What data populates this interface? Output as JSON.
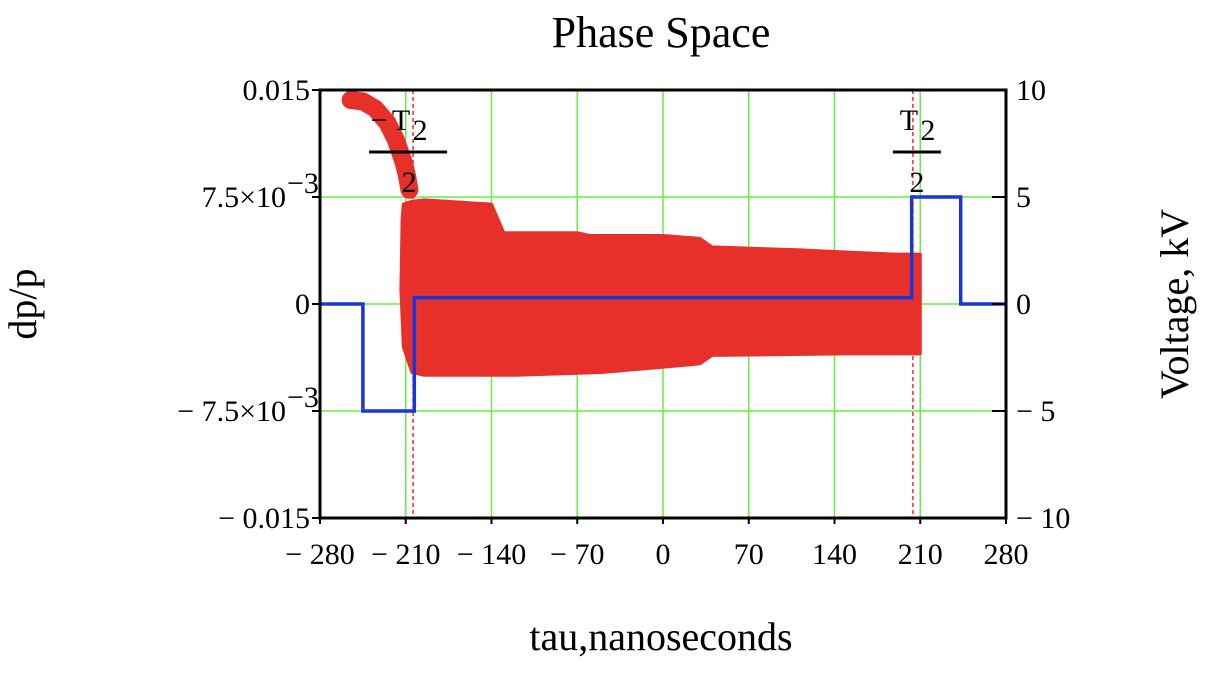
{
  "chart_data": {
    "type": "scatter",
    "title": "Phase Space",
    "xlabel": "tau,nanoseconds",
    "ylabel": "dp/p",
    "y2label": "Voltage, kV",
    "xlim": [
      -280,
      280
    ],
    "ylim": [
      -0.015,
      0.015
    ],
    "y2lim": [
      -10,
      10
    ],
    "grid": true,
    "grid_color": "#66ee44",
    "x_ticks": [
      {
        "value": -280,
        "label": "− 280"
      },
      {
        "value": -210,
        "label": "− 210"
      },
      {
        "value": -140,
        "label": "− 140"
      },
      {
        "value": -70,
        "label": "− 70"
      },
      {
        "value": 0,
        "label": "0"
      },
      {
        "value": 70,
        "label": "70"
      },
      {
        "value": 140,
        "label": "140"
      },
      {
        "value": 210,
        "label": "210"
      },
      {
        "value": 280,
        "label": "280"
      }
    ],
    "y_ticks": [
      {
        "value": 0.015,
        "label": "0.015",
        "exp": ""
      },
      {
        "value": 0.0075,
        "label": "7.5×10",
        "exp": "−3"
      },
      {
        "value": 0,
        "label": "0",
        "exp": ""
      },
      {
        "value": -0.0075,
        "label": "− 7.5×10",
        "exp": "−3"
      },
      {
        "value": -0.015,
        "label": "− 0.015",
        "exp": ""
      }
    ],
    "y2_ticks": [
      {
        "value": 10,
        "label": "10"
      },
      {
        "value": 5,
        "label": "5"
      },
      {
        "value": 0,
        "label": "0"
      },
      {
        "value": -5,
        "label": "− 5"
      },
      {
        "value": -10,
        "label": "− 10"
      }
    ],
    "markers": [
      {
        "x": -204,
        "label": "T",
        "sub": "2",
        "denominator": "2",
        "prefix": "−"
      },
      {
        "x": 204,
        "label": "T",
        "sub": "2",
        "denominator": "2",
        "prefix": ""
      }
    ],
    "marker_color": "#e8302a",
    "series": [
      {
        "kind": "voltage",
        "color": "#1a35d8",
        "axis": "y2",
        "points": [
          [
            -280,
            0
          ],
          [
            -245,
            0
          ],
          [
            -245,
            -5
          ],
          [
            -203,
            -5
          ],
          [
            -203,
            0.3
          ],
          [
            203,
            0.3
          ],
          [
            203,
            5
          ],
          [
            243,
            5
          ],
          [
            243,
            0
          ],
          [
            280,
            0
          ]
        ]
      },
      {
        "kind": "particles",
        "color": "#e8302a",
        "axis": "y",
        "tail": [
          [
            -255,
            0.0143
          ],
          [
            -245,
            0.0142
          ],
          [
            -235,
            0.0137
          ],
          [
            -225,
            0.0127
          ],
          [
            -218,
            0.0115
          ],
          [
            -212,
            0.01
          ],
          [
            -209,
            0.009
          ],
          [
            -207,
            0.008
          ]
        ],
        "envelope_upper": [
          [
            -212,
            0.007
          ],
          [
            -205,
            0.0072
          ],
          [
            -195,
            0.0073
          ],
          [
            -140,
            0.007
          ],
          [
            -130,
            0.005
          ],
          [
            -70,
            0.005
          ],
          [
            -60,
            0.0048
          ],
          [
            0,
            0.0048
          ],
          [
            30,
            0.0046
          ],
          [
            40,
            0.004
          ],
          [
            110,
            0.0038
          ],
          [
            160,
            0.0036
          ],
          [
            190,
            0.0035
          ],
          [
            210,
            0.0035
          ]
        ],
        "envelope_lower": [
          [
            210,
            -0.0035
          ],
          [
            150,
            -0.0035
          ],
          [
            40,
            -0.0036
          ],
          [
            30,
            -0.0042
          ],
          [
            -10,
            -0.0045
          ],
          [
            -50,
            -0.0048
          ],
          [
            -120,
            -0.005
          ],
          [
            -195,
            -0.005
          ],
          [
            -205,
            -0.0048
          ],
          [
            -212,
            -0.003
          ],
          [
            -214,
            0.001
          ],
          [
            -213,
            0.006
          ]
        ]
      }
    ]
  }
}
